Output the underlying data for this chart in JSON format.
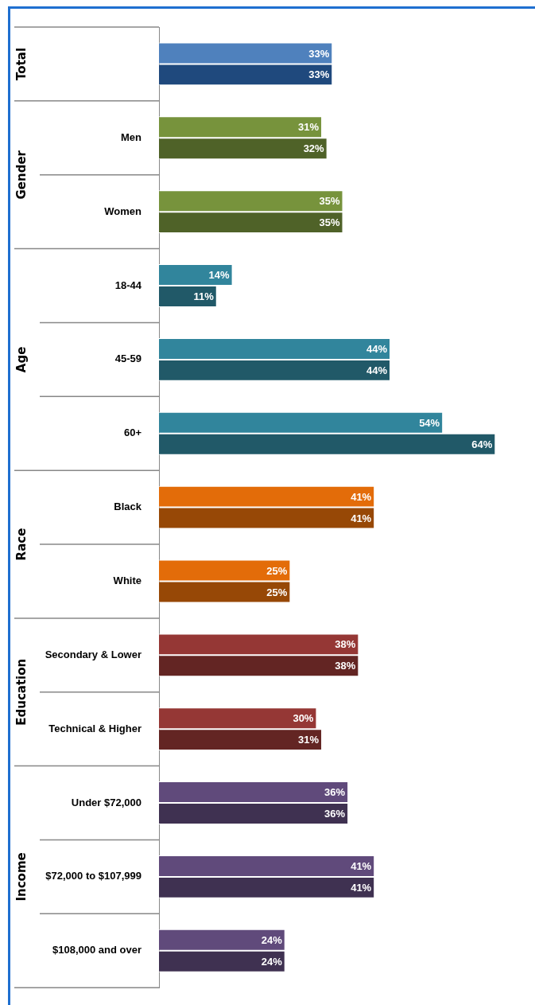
{
  "chart_data": {
    "type": "bar",
    "orientation": "horizontal",
    "categories": [
      null,
      "Men",
      "Women",
      "18-44",
      "45-59",
      "60+",
      "Black",
      "White",
      "Secondary & Lower",
      "Technical & Higher",
      "Under $72,000",
      "$72,000 to $107,999",
      "$108,000 and over"
    ],
    "series": [
      {
        "colors": [
          "#4f81bd",
          "#77933c",
          "#77933c",
          "#31859c",
          "#31859c",
          "#31859c",
          "#e36c09",
          "#e36c09",
          "#953735",
          "#953735",
          "#604a7b",
          "#604a7b",
          "#604a7b"
        ],
        "values": [
          33,
          31,
          35,
          14,
          44,
          54,
          41,
          25,
          38,
          30,
          36,
          41,
          24
        ],
        "value_labels": [
          "33%",
          "31%",
          "35%",
          "14%",
          "44%",
          "54%",
          "41%",
          "25%",
          "38%",
          "30%",
          "36%",
          "41%",
          "24%"
        ]
      },
      {
        "colors": [
          "#1f497d",
          "#4f6228",
          "#4f6228",
          "#215968",
          "#215968",
          "#215968",
          "#974806",
          "#974806",
          "#632523",
          "#632523",
          "#3f3151",
          "#3f3151",
          "#3f3151"
        ],
        "values": [
          33,
          32,
          35,
          11,
          44,
          64,
          41,
          25,
          38,
          31,
          36,
          41,
          24
        ],
        "value_labels": [
          "33%",
          "32%",
          "35%",
          "11%",
          "44%",
          "64%",
          "41%",
          "25%",
          "38%",
          "31%",
          "36%",
          "41%",
          "24%"
        ]
      }
    ],
    "tick_labels": "y",
    "grid": false,
    "legend": false,
    "annotations": [
      "Total",
      "Gender",
      "Age",
      "Race",
      "Education",
      "Income"
    ]
  }
}
